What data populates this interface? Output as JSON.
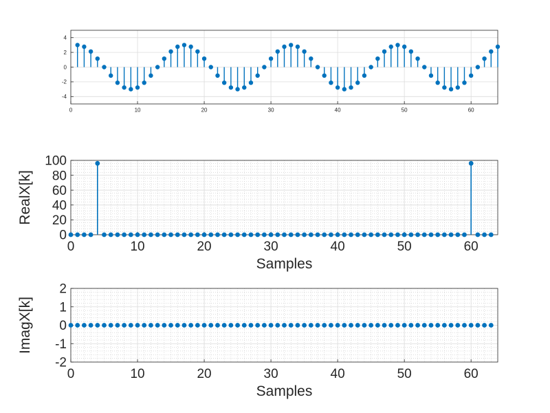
{
  "chart_data": [
    {
      "type": "stem",
      "title": "",
      "xlabel": "",
      "ylabel": "",
      "xlim": [
        0,
        64
      ],
      "ylim": [
        -5,
        5
      ],
      "xticks": [
        0,
        10,
        20,
        30,
        40,
        50,
        60
      ],
      "yticks": [
        -4,
        -2,
        0,
        2,
        4
      ],
      "grid": "major",
      "series": [
        {
          "color": "#0072BD",
          "x": [
            1,
            2,
            3,
            4,
            5,
            6,
            7,
            8,
            9,
            10,
            11,
            12,
            13,
            14,
            15,
            16,
            17,
            18,
            19,
            20,
            21,
            22,
            23,
            24,
            25,
            26,
            27,
            28,
            29,
            30,
            31,
            32,
            33,
            34,
            35,
            36,
            37,
            38,
            39,
            40,
            41,
            42,
            43,
            44,
            45,
            46,
            47,
            48,
            49,
            50,
            51,
            52,
            53,
            54,
            55,
            56,
            57,
            58,
            59,
            60,
            61,
            62,
            63,
            64
          ],
          "y": [
            3.0,
            2.77,
            2.12,
            1.15,
            0,
            -1.15,
            -2.12,
            -2.77,
            -3.0,
            -2.77,
            -2.12,
            -1.15,
            0,
            1.15,
            2.12,
            2.77,
            3.0,
            2.77,
            2.12,
            1.15,
            0,
            -1.15,
            -2.12,
            -2.77,
            -3.0,
            -2.77,
            -2.12,
            -1.15,
            0,
            1.15,
            2.12,
            2.77,
            3.0,
            2.77,
            2.12,
            1.15,
            0,
            -1.15,
            -2.12,
            -2.77,
            -3.0,
            -2.77,
            -2.12,
            -1.15,
            0,
            1.15,
            2.12,
            2.77,
            3.0,
            2.77,
            2.12,
            1.15,
            0,
            -1.15,
            -2.12,
            -2.77,
            -3.0,
            -2.77,
            -2.12,
            -1.15,
            0,
            1.15,
            2.12,
            2.77
          ]
        }
      ]
    },
    {
      "type": "stem",
      "title": "",
      "xlabel": "Samples",
      "ylabel": "RealX[k]",
      "xlim": [
        0,
        64
      ],
      "ylim": [
        0,
        100
      ],
      "xticks": [
        0,
        10,
        20,
        30,
        40,
        50,
        60
      ],
      "yticks": [
        0,
        20,
        40,
        60,
        80,
        100
      ],
      "grid": "major+minor",
      "series": [
        {
          "color": "#0072BD",
          "x": [
            0,
            1,
            2,
            3,
            4,
            5,
            6,
            7,
            8,
            9,
            10,
            11,
            12,
            13,
            14,
            15,
            16,
            17,
            18,
            19,
            20,
            21,
            22,
            23,
            24,
            25,
            26,
            27,
            28,
            29,
            30,
            31,
            32,
            33,
            34,
            35,
            36,
            37,
            38,
            39,
            40,
            41,
            42,
            43,
            44,
            45,
            46,
            47,
            48,
            49,
            50,
            51,
            52,
            53,
            54,
            55,
            56,
            57,
            58,
            59,
            60,
            61,
            62,
            63
          ],
          "y": [
            0,
            0,
            0,
            0,
            96,
            0,
            0,
            0,
            0,
            0,
            0,
            0,
            0,
            0,
            0,
            0,
            0,
            0,
            0,
            0,
            0,
            0,
            0,
            0,
            0,
            0,
            0,
            0,
            0,
            0,
            0,
            0,
            0,
            0,
            0,
            0,
            0,
            0,
            0,
            0,
            0,
            0,
            0,
            0,
            0,
            0,
            0,
            0,
            0,
            0,
            0,
            0,
            0,
            0,
            0,
            0,
            0,
            0,
            0,
            0,
            96,
            0,
            0,
            0
          ]
        }
      ]
    },
    {
      "type": "stem",
      "title": "",
      "xlabel": "Samples",
      "ylabel": "ImagX[k]",
      "xlim": [
        0,
        64
      ],
      "ylim": [
        -2,
        2
      ],
      "xticks": [
        0,
        10,
        20,
        30,
        40,
        50,
        60
      ],
      "yticks": [
        -2,
        -1,
        0,
        1,
        2
      ],
      "grid": "major+minor",
      "series": [
        {
          "color": "#0072BD",
          "x": [
            0,
            1,
            2,
            3,
            4,
            5,
            6,
            7,
            8,
            9,
            10,
            11,
            12,
            13,
            14,
            15,
            16,
            17,
            18,
            19,
            20,
            21,
            22,
            23,
            24,
            25,
            26,
            27,
            28,
            29,
            30,
            31,
            32,
            33,
            34,
            35,
            36,
            37,
            38,
            39,
            40,
            41,
            42,
            43,
            44,
            45,
            46,
            47,
            48,
            49,
            50,
            51,
            52,
            53,
            54,
            55,
            56,
            57,
            58,
            59,
            60,
            61,
            62,
            63
          ],
          "y": [
            0,
            0,
            0,
            0,
            0,
            0,
            0,
            0,
            0,
            0,
            0,
            0,
            0,
            0,
            0,
            0,
            0,
            0,
            0,
            0,
            0,
            0,
            0,
            0,
            0,
            0,
            0,
            0,
            0,
            0,
            0,
            0,
            0,
            0,
            0,
            0,
            0,
            0,
            0,
            0,
            0,
            0,
            0,
            0,
            0,
            0,
            0,
            0,
            0,
            0,
            0,
            0,
            0,
            0,
            0,
            0,
            0,
            0,
            0,
            0,
            0,
            0,
            0,
            0
          ]
        }
      ]
    }
  ]
}
